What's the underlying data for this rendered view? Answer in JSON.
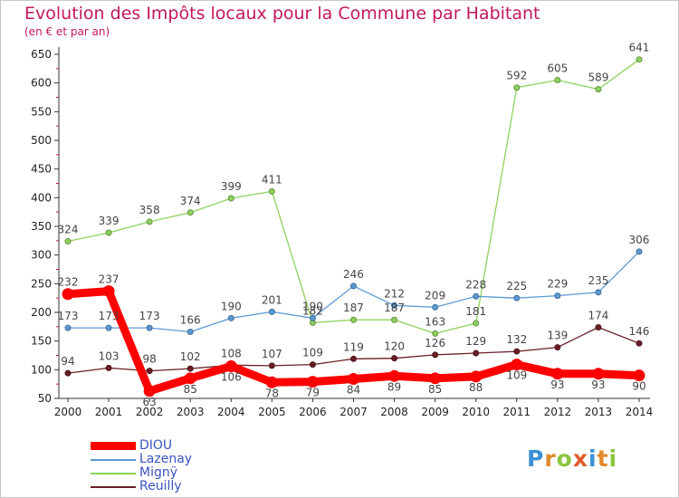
{
  "header": {
    "title": "Evolution des Impôts locaux pour la Commune par Habitant",
    "subtitle": "(en € et par an)"
  },
  "brand": {
    "logo_text": "Proxiti",
    "letters": [
      {
        "ch": "P",
        "color": "#3a8fd4"
      },
      {
        "ch": "r",
        "color": "#e08a2a"
      },
      {
        "ch": "o",
        "color": "#8cc63f"
      },
      {
        "ch": "x",
        "color": "#e05a2a"
      },
      {
        "ch": "i",
        "color": "#3a8fd4"
      },
      {
        "ch": "t",
        "color": "#e08a2a"
      },
      {
        "ch": "i",
        "color": "#8cc63f"
      }
    ]
  },
  "chart_data": {
    "type": "line",
    "x": [
      "2000",
      "2001",
      "2002",
      "2003",
      "2004",
      "2005",
      "2006",
      "2007",
      "2008",
      "2009",
      "2010",
      "2011",
      "2012",
      "2013",
      "2014"
    ],
    "ylim": [
      50,
      650
    ],
    "yticks": [
      50,
      100,
      150,
      200,
      250,
      300,
      350,
      400,
      450,
      500,
      550,
      600,
      650
    ],
    "grid": false,
    "legend_position": "bottom-left",
    "series": [
      {
        "name": "Mignÿ",
        "color": "#8ed15c",
        "values": [
          324,
          339,
          358,
          374,
          399,
          411,
          182,
          187,
          187,
          163,
          181,
          592,
          605,
          589,
          641
        ]
      },
      {
        "name": "Lazenay",
        "color": "#5b9bd5",
        "values": [
          173,
          173,
          173,
          166,
          190,
          201,
          190,
          246,
          212,
          209,
          228,
          225,
          229,
          235,
          306
        ]
      },
      {
        "name": "Reuilly",
        "color": "#6b1e26",
        "values": [
          94,
          103,
          98,
          102,
          108,
          107,
          109,
          119,
          120,
          126,
          129,
          132,
          139,
          174,
          146
        ]
      },
      {
        "name": "DIOU",
        "color": "#ff0000",
        "values": [
          232,
          237,
          63,
          85,
          106,
          78,
          79,
          84,
          89,
          85,
          88,
          109,
          93,
          93,
          90
        ]
      }
    ]
  }
}
